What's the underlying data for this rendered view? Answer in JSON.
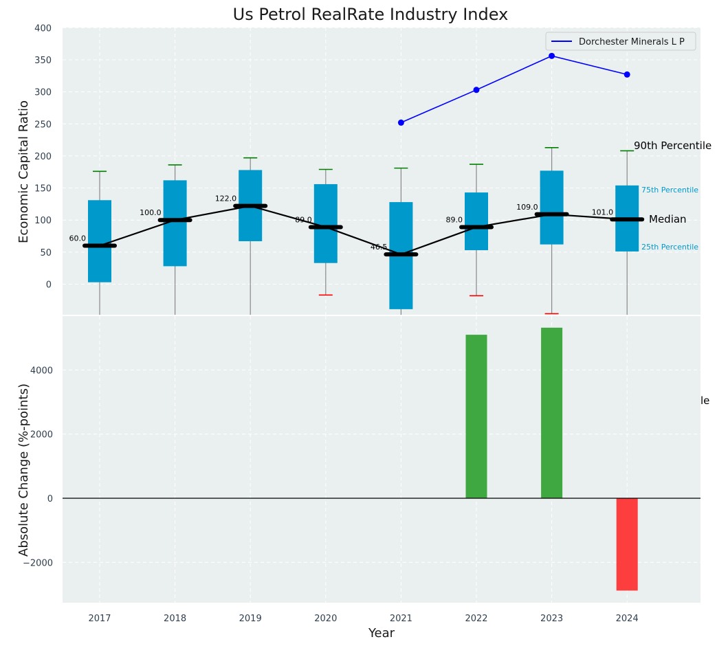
{
  "chart_data": [
    {
      "type": "box",
      "title": "Us Petrol RealRate Industry Index",
      "ylabel": "Economic Capital Ratio",
      "ylim": [
        -48,
        400
      ],
      "yticks": [
        0,
        50,
        100,
        150,
        200,
        250,
        300,
        350,
        400
      ],
      "categories": [
        "2017",
        "2018",
        "2019",
        "2020",
        "2021",
        "2022",
        "2023",
        "2024"
      ],
      "boxes": [
        {
          "year": "2017",
          "p10": -48,
          "p25": 3,
          "median": 60,
          "p75": 131,
          "p90": 176,
          "median_label": "60.0"
        },
        {
          "year": "2018",
          "p10": -48,
          "p25": 28,
          "median": 100,
          "p75": 162,
          "p90": 186,
          "median_label": "100.0"
        },
        {
          "year": "2019",
          "p10": -48,
          "p25": 67,
          "median": 122,
          "p75": 178,
          "p90": 197,
          "median_label": "122.0"
        },
        {
          "year": "2020",
          "p10": -17,
          "p25": 33,
          "median": 89,
          "p75": 156,
          "p90": 179,
          "median_label": "89.0"
        },
        {
          "year": "2021",
          "p10": -48,
          "p25": -39,
          "median": 46.5,
          "p75": 128,
          "p90": 181,
          "median_label": "46.5"
        },
        {
          "year": "2022",
          "p10": -18,
          "p25": 53,
          "median": 89,
          "p75": 143,
          "p90": 187,
          "median_label": "89.0"
        },
        {
          "year": "2023",
          "p10": -46,
          "p25": 62,
          "median": 109,
          "p75": 177,
          "p90": 213,
          "median_label": "109.0"
        },
        {
          "year": "2024",
          "p10": -48,
          "p25": 51,
          "median": 101,
          "p75": 154,
          "p90": 208,
          "median_label": "101.0"
        }
      ],
      "series": [
        {
          "name": "Dorchester Minerals L P",
          "years": [
            "2021",
            "2022",
            "2023",
            "2024"
          ],
          "values": [
            252,
            303,
            356,
            327
          ],
          "color": "#0000ff"
        }
      ],
      "annotations": {
        "p90": "90th Percentile",
        "p75": "75th Percentile",
        "median": "Median",
        "p25": "25th Percentile"
      },
      "legend": "top-right",
      "colors": {
        "box": "#0099cc",
        "median": "#000000",
        "whisker_top": "#008000",
        "whisker_bottom": "#ff0000",
        "plot_bg": "#eaeff0"
      }
    },
    {
      "type": "bar",
      "ylabel": "Absolute Change (%-points)",
      "xlabel": "Year",
      "ylim": [
        -3300,
        5600
      ],
      "yticks": [
        -2000,
        0,
        2000,
        4000
      ],
      "ytick_labels": [
        "−2000",
        "0",
        "2000",
        "4000"
      ],
      "categories": [
        "2017",
        "2018",
        "2019",
        "2020",
        "2021",
        "2022",
        "2023",
        "2024"
      ],
      "values": [
        null,
        null,
        null,
        null,
        null,
        5100,
        5320,
        -2880
      ],
      "colors": {
        "positive": "#2ca02c",
        "negative": "#ff2a2a"
      },
      "stray_label": "le"
    }
  ]
}
